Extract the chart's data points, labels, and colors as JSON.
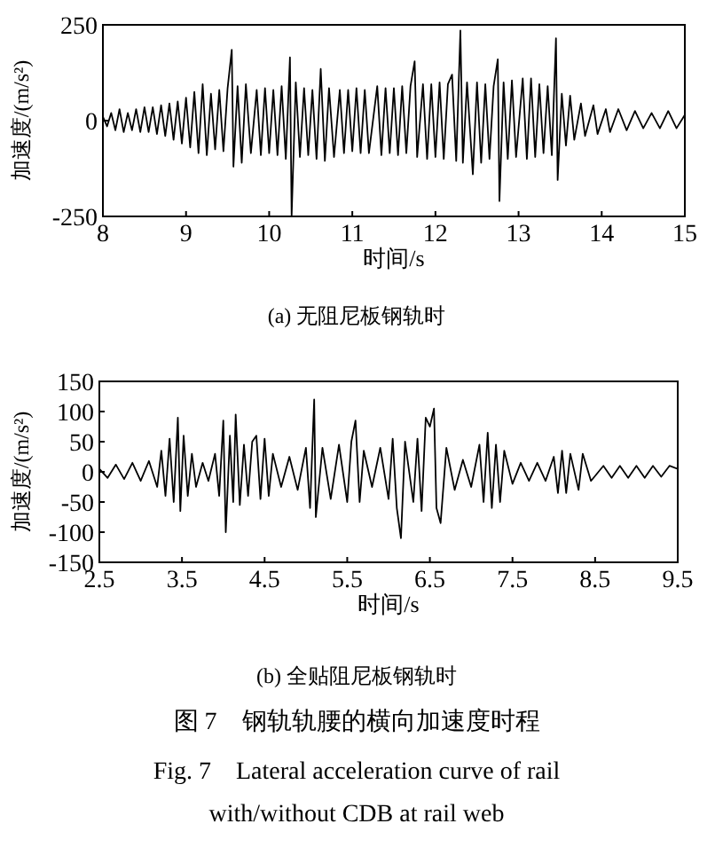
{
  "chart_data": [
    {
      "type": "line",
      "xlabel": "时间/s",
      "ylabel": "加速度/(m/s²)",
      "xlim": [
        8,
        15
      ],
      "ylim": [
        -250,
        250
      ],
      "xticks": [
        8,
        9,
        10,
        11,
        12,
        13,
        14,
        15
      ],
      "yticks": [
        -250,
        0,
        250
      ],
      "annotations": [
        "(a) 无阻尼板钢轨时"
      ],
      "series": [
        {
          "color": "#000000",
          "x": [
            8.0,
            8.05,
            8.1,
            8.15,
            8.2,
            8.25,
            8.3,
            8.35,
            8.4,
            8.45,
            8.5,
            8.55,
            8.6,
            8.65,
            8.7,
            8.75,
            8.8,
            8.85,
            8.9,
            8.95,
            9.0,
            9.05,
            9.1,
            9.15,
            9.2,
            9.25,
            9.3,
            9.35,
            9.4,
            9.45,
            9.5,
            9.55,
            9.57,
            9.62,
            9.67,
            9.72,
            9.78,
            9.85,
            9.9,
            9.95,
            10.0,
            10.05,
            10.1,
            10.15,
            10.2,
            10.25,
            10.27,
            10.32,
            10.37,
            10.42,
            10.47,
            10.52,
            10.57,
            10.62,
            10.67,
            10.72,
            10.78,
            10.85,
            10.9,
            10.95,
            11.0,
            11.05,
            11.1,
            11.15,
            11.2,
            11.3,
            11.35,
            11.4,
            11.45,
            11.5,
            11.55,
            11.6,
            11.65,
            11.7,
            11.75,
            11.78,
            11.85,
            11.9,
            11.95,
            12.0,
            12.05,
            12.1,
            12.15,
            12.2,
            12.25,
            12.3,
            12.33,
            12.38,
            12.45,
            12.5,
            12.55,
            12.6,
            12.65,
            12.7,
            12.75,
            12.77,
            12.82,
            12.87,
            12.92,
            12.97,
            13.05,
            13.1,
            13.15,
            13.2,
            13.25,
            13.3,
            13.35,
            13.4,
            13.45,
            13.47,
            13.52,
            13.57,
            13.62,
            13.67,
            13.75,
            13.8,
            13.9,
            13.95,
            14.05,
            14.1,
            14.2,
            14.3,
            14.4,
            14.5,
            14.6,
            14.7,
            14.8,
            14.9,
            15.0
          ],
          "values": [
            10,
            -15,
            20,
            -25,
            30,
            -30,
            20,
            -25,
            30,
            -30,
            35,
            -30,
            35,
            -35,
            40,
            -40,
            45,
            -50,
            50,
            -60,
            60,
            -70,
            75,
            -85,
            95,
            -90,
            70,
            -75,
            80,
            -80,
            85,
            185,
            -120,
            90,
            -110,
            95,
            -85,
            80,
            -90,
            85,
            -85,
            80,
            -90,
            90,
            -100,
            165,
            -250,
            100,
            -95,
            85,
            -90,
            80,
            -100,
            135,
            -105,
            85,
            -95,
            80,
            -85,
            80,
            -80,
            85,
            -85,
            80,
            -85,
            90,
            -90,
            85,
            -85,
            85,
            -90,
            90,
            -85,
            90,
            155,
            -95,
            95,
            -100,
            95,
            -95,
            100,
            -100,
            95,
            120,
            -105,
            235,
            -110,
            100,
            -140,
            100,
            -110,
            95,
            -100,
            90,
            160,
            -210,
            100,
            -100,
            105,
            -95,
            110,
            -100,
            110,
            -95,
            95,
            -85,
            90,
            -90,
            215,
            -155,
            70,
            -65,
            65,
            -50,
            45,
            -40,
            40,
            -35,
            30,
            -30,
            30,
            -25,
            25,
            -20,
            20,
            -20,
            25,
            -20,
            15
          ]
        }
      ]
    },
    {
      "type": "line",
      "xlabel": "时间/s",
      "ylabel": "加速度/(m/s²)",
      "xlim": [
        2.5,
        9.5
      ],
      "ylim": [
        -150,
        150
      ],
      "xticks": [
        2.5,
        3.5,
        4.5,
        5.5,
        6.5,
        7.5,
        8.5,
        9.5
      ],
      "yticks": [
        -150,
        -100,
        -50,
        0,
        50,
        100,
        150
      ],
      "annotations": [
        "(b) 全贴阻尼板钢轨时",
        "图 7　钢轨轨腰的横向加速度时程",
        "Fig. 7　Lateral acceleration curve of rail with/without CDB at rail web"
      ],
      "series": [
        {
          "color": "#000000",
          "x": [
            2.5,
            2.6,
            2.7,
            2.8,
            2.9,
            3.0,
            3.1,
            3.2,
            3.25,
            3.3,
            3.35,
            3.4,
            3.45,
            3.48,
            3.52,
            3.57,
            3.62,
            3.67,
            3.75,
            3.82,
            3.9,
            3.95,
            4.0,
            4.03,
            4.08,
            4.12,
            4.15,
            4.2,
            4.25,
            4.3,
            4.35,
            4.4,
            4.45,
            4.5,
            4.55,
            4.6,
            4.7,
            4.8,
            4.9,
            5.0,
            5.05,
            5.1,
            5.12,
            5.2,
            5.3,
            5.4,
            5.5,
            5.55,
            5.6,
            5.65,
            5.7,
            5.8,
            5.9,
            6.0,
            6.05,
            6.1,
            6.15,
            6.2,
            6.3,
            6.35,
            6.4,
            6.45,
            6.5,
            6.55,
            6.58,
            6.63,
            6.7,
            6.8,
            6.9,
            7.0,
            7.1,
            7.15,
            7.2,
            7.25,
            7.3,
            7.35,
            7.4,
            7.5,
            7.6,
            7.7,
            7.8,
            7.9,
            8.0,
            8.05,
            8.1,
            8.15,
            8.2,
            8.3,
            8.35,
            8.45,
            8.6,
            8.7,
            8.8,
            8.9,
            9.0,
            9.1,
            9.2,
            9.3,
            9.4,
            9.5
          ],
          "values": [
            5,
            -10,
            12,
            -12,
            15,
            -15,
            18,
            -25,
            35,
            -40,
            55,
            -50,
            90,
            -65,
            60,
            -40,
            30,
            -25,
            15,
            -15,
            30,
            -40,
            85,
            -100,
            60,
            -50,
            95,
            -55,
            45,
            -40,
            50,
            60,
            -45,
            55,
            -40,
            30,
            -25,
            25,
            -30,
            40,
            -60,
            120,
            -75,
            40,
            -45,
            45,
            -50,
            50,
            85,
            -50,
            35,
            -25,
            40,
            -45,
            55,
            -60,
            -110,
            50,
            -50,
            55,
            -65,
            90,
            75,
            105,
            -60,
            -85,
            40,
            -30,
            20,
            -25,
            45,
            -50,
            65,
            -60,
            45,
            -50,
            35,
            -20,
            15,
            -15,
            15,
            -15,
            25,
            -35,
            35,
            -35,
            30,
            -30,
            30,
            -15,
            10,
            -10,
            10,
            -10,
            10,
            -10,
            10,
            -8,
            10,
            5
          ]
        }
      ]
    }
  ]
}
